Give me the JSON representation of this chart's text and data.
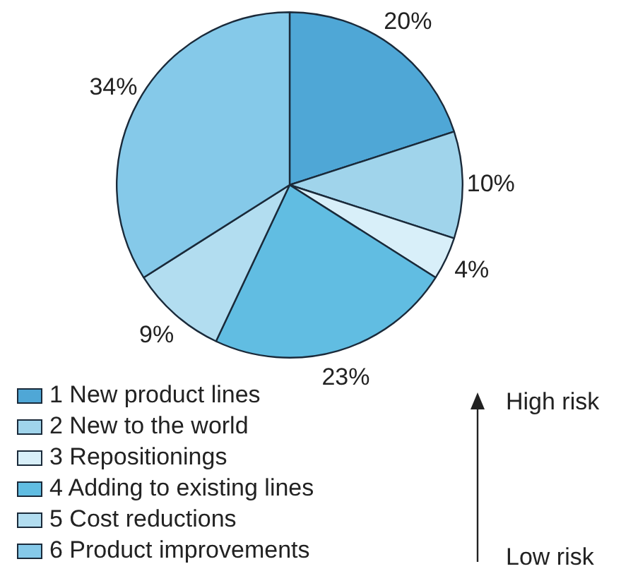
{
  "chart_data": {
    "type": "pie",
    "categories": [
      "1 New product lines",
      "2 New to the world",
      "3 Repositionings",
      "4 Adding to existing lines",
      "5 Cost reductions",
      "6 Product improvements"
    ],
    "values": [
      20,
      10,
      4,
      23,
      9,
      34
    ],
    "colors": [
      "#4fa7d6",
      "#a0d4eb",
      "#d8eff9",
      "#61bde2",
      "#b2ddf0",
      "#85c9e9"
    ],
    "value_labels": [
      "20%",
      "10%",
      "4%",
      "23%",
      "9%",
      "34%"
    ],
    "legend": "bottom left",
    "annotations": [
      "High risk",
      "Low risk"
    ]
  }
}
